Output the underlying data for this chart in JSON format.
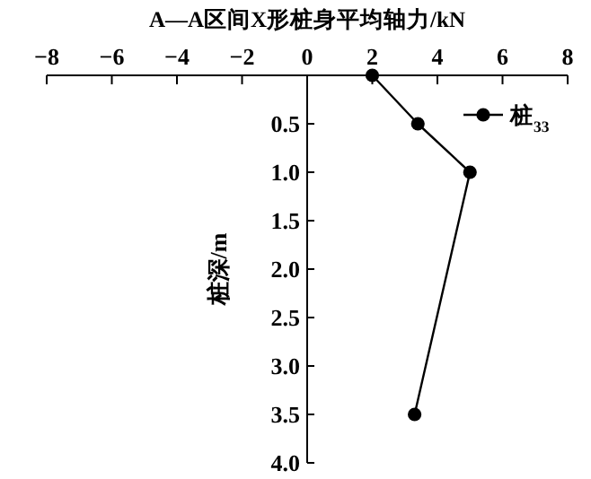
{
  "chart_data": {
    "type": "line",
    "xlabel": "A—A区间X形桩身平均轴力/kN",
    "ylabel": "桩深/m",
    "x": [
      2.0,
      3.4,
      5.0,
      3.3
    ],
    "series": [
      {
        "name": "桩$_{33}$",
        "color": "#000000",
        "values": [
          0,
          0.5,
          1.0,
          3.5
        ]
      }
    ],
    "xlim": [
      -8,
      8
    ],
    "xticks": [
      -8,
      -6,
      -4,
      -2,
      0,
      2,
      4,
      6,
      8
    ],
    "ylim": [
      4.0,
      0
    ],
    "yticks": [
      {
        "value": 0.5,
        "label": "0.5"
      },
      {
        "value": 1.0,
        "label": "1.0"
      },
      {
        "value": 1.5,
        "label": "1.5"
      },
      {
        "value": 2.0,
        "label": "2.0"
      },
      {
        "value": 2.5,
        "label": "2.5"
      },
      {
        "value": 3.0,
        "label": "3.0"
      },
      {
        "value": 3.5,
        "label": "3.5"
      },
      {
        "value": 4.0,
        "label": "4.0"
      }
    ],
    "marker": "circle",
    "line_style": "solid",
    "legend": "top right",
    "grid": false
  }
}
